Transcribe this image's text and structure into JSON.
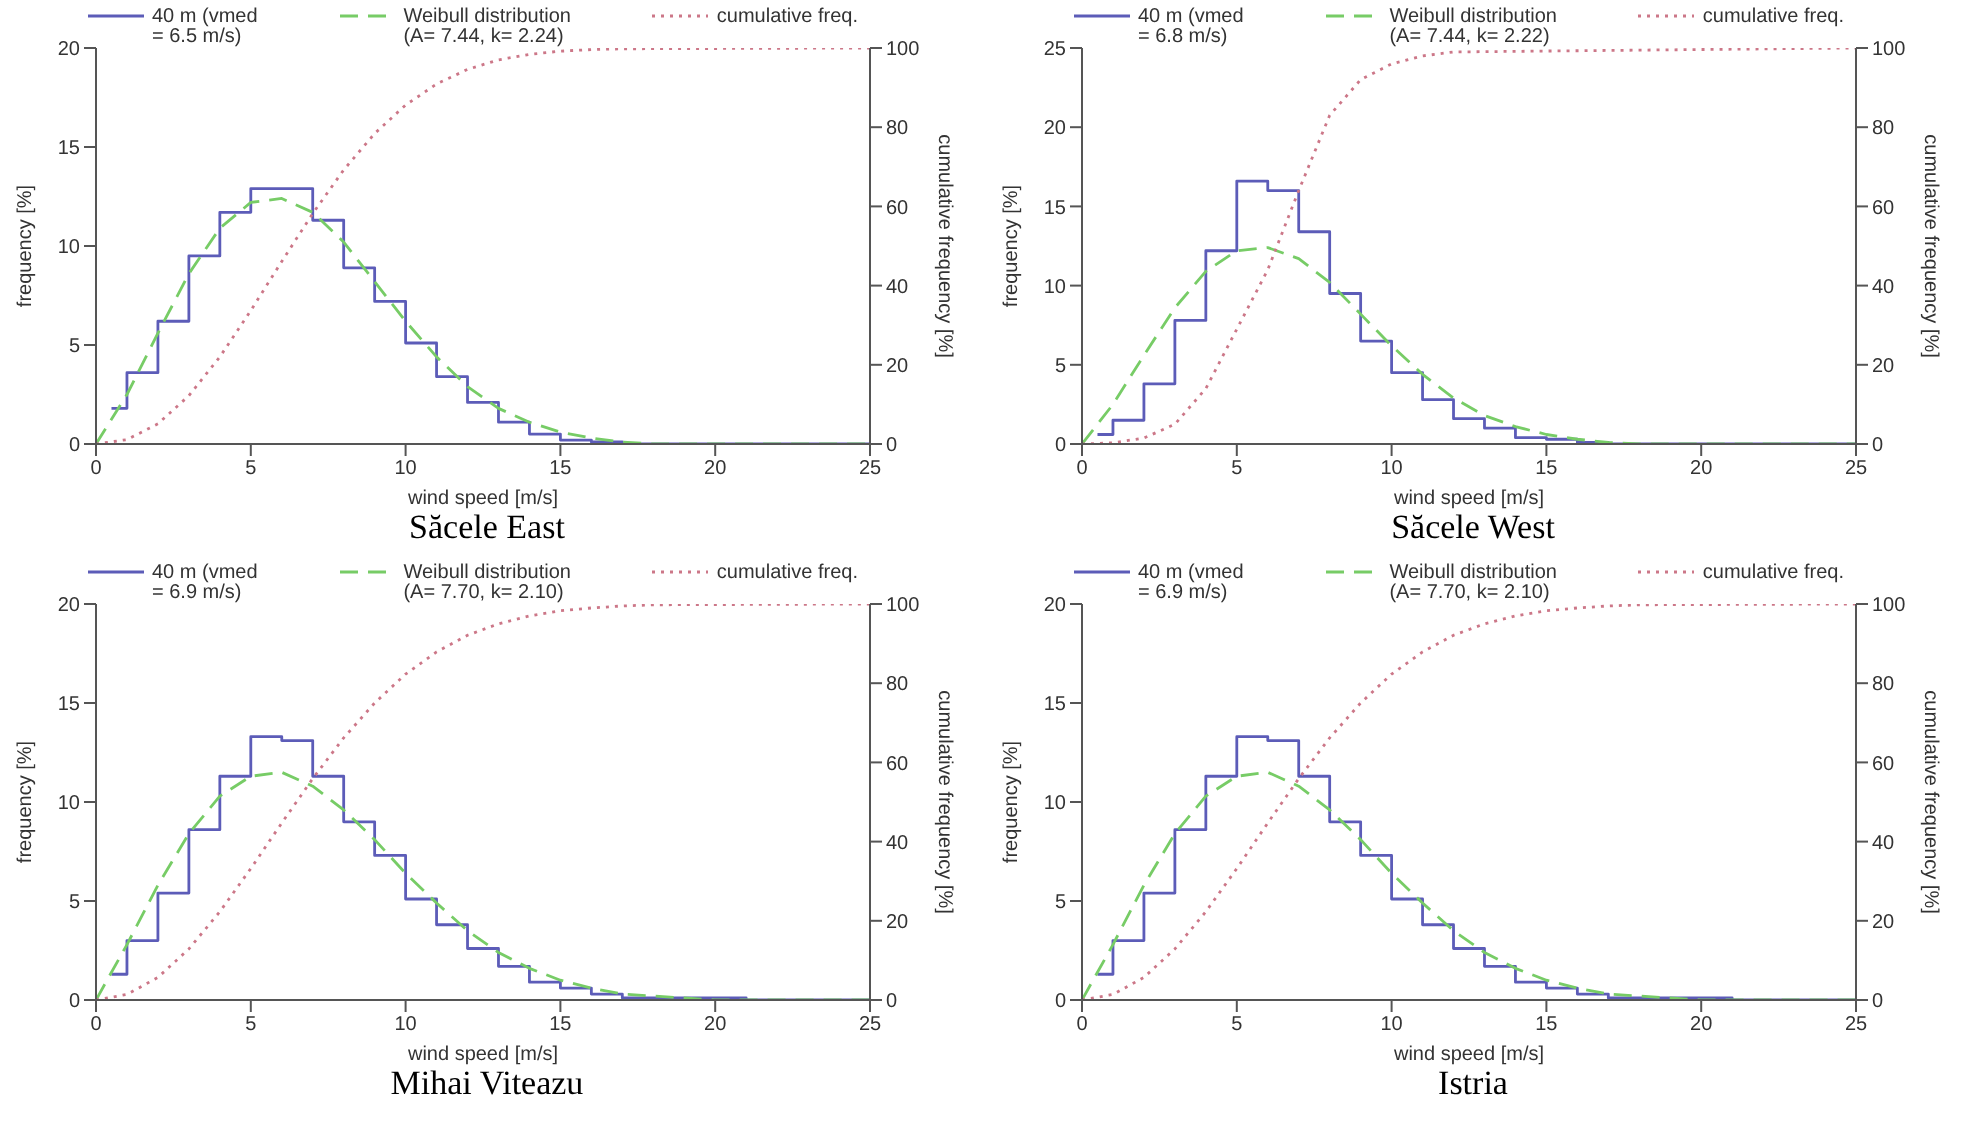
{
  "chart_data": [
    {
      "type": "step",
      "title": "Săcele East",
      "xlabel": "wind speed [m/s]",
      "ylabel": "frequency [%]",
      "y2label": "cumulative frequency [%]",
      "xlim": [
        0,
        25
      ],
      "xticks": [
        0,
        5,
        10,
        15,
        20,
        25
      ],
      "ylim": [
        0,
        20
      ],
      "yticks": [
        0,
        5,
        10,
        15,
        20
      ],
      "y2lim": [
        0,
        100
      ],
      "y2ticks": [
        0,
        20,
        40,
        60,
        80,
        100
      ],
      "legend": "top",
      "grid": false,
      "series": [
        {
          "name": "40 m (vmed\n= 6.5 m/s)",
          "color": "#5c5cb8",
          "line_style": "solid",
          "x": [
            0.5,
            1,
            2,
            3,
            4,
            5,
            6,
            7,
            8,
            9,
            10,
            11,
            12,
            13,
            14,
            15,
            16,
            17,
            25
          ],
          "values": [
            1.8,
            3.6,
            6.2,
            9.5,
            11.7,
            12.9,
            12.9,
            11.3,
            8.9,
            7.2,
            5.1,
            3.4,
            2.1,
            1.1,
            0.5,
            0.2,
            0.1,
            0,
            0
          ]
        },
        {
          "type": "line",
          "name": "Weibull distribution\n(A= 7.44, k= 2.24)",
          "color": "#77cc66",
          "line_style": "dashed",
          "x": [
            0,
            1,
            2,
            3,
            4,
            5,
            6,
            7,
            8,
            9,
            10,
            11,
            12,
            13,
            14,
            15,
            16,
            17,
            18,
            25
          ],
          "values": [
            0,
            2.5,
            5.6,
            8.6,
            10.9,
            12.2,
            12.4,
            11.7,
            10.2,
            8.2,
            6.2,
            4.4,
            2.9,
            1.8,
            1.1,
            0.6,
            0.3,
            0.1,
            0,
            0
          ]
        },
        {
          "type": "line",
          "axis": "y2",
          "name": "cumulative freq.",
          "color": "#cc7788",
          "line_style": "dotted",
          "x": [
            0,
            1,
            2,
            3,
            4,
            5,
            6,
            7,
            8,
            9,
            10,
            11,
            12,
            13,
            14,
            15,
            16,
            17,
            25
          ],
          "values": [
            0,
            1.1,
            5.1,
            12.2,
            22.0,
            33.7,
            46.1,
            58.2,
            69.2,
            78.4,
            85.6,
            90.9,
            94.6,
            97.0,
            98.4,
            99.2,
            99.6,
            99.8,
            100
          ]
        }
      ]
    },
    {
      "type": "step",
      "title": "Săcele West",
      "xlabel": "wind speed [m/s]",
      "ylabel": "frequency [%]",
      "y2label": "cumulative frequency [%]",
      "xlim": [
        0,
        25
      ],
      "xticks": [
        0,
        5,
        10,
        15,
        20,
        25
      ],
      "ylim": [
        0,
        25
      ],
      "yticks": [
        0,
        5,
        10,
        15,
        20,
        25
      ],
      "y2lim": [
        0,
        100
      ],
      "y2ticks": [
        0,
        20,
        40,
        60,
        80,
        100
      ],
      "legend": "top",
      "grid": false,
      "series": [
        {
          "name": "40 m (vmed\n= 6.8 m/s)",
          "color": "#5c5cb8",
          "line_style": "solid",
          "x": [
            0.5,
            1,
            2,
            3,
            4,
            5,
            6,
            7,
            8,
            9,
            10,
            11,
            12,
            13,
            14,
            15,
            16,
            17,
            25
          ],
          "values": [
            0.6,
            1.5,
            3.8,
            7.8,
            12.2,
            16.6,
            16.0,
            13.4,
            9.5,
            6.5,
            4.5,
            2.8,
            1.6,
            1.0,
            0.4,
            0.3,
            0.1,
            0,
            0
          ]
        },
        {
          "type": "line",
          "name": "Weibull distribution\n(A= 7.44, k= 2.22)",
          "color": "#77cc66",
          "line_style": "dashed",
          "x": [
            0,
            1,
            2,
            3,
            4,
            5,
            6,
            7,
            8,
            9,
            10,
            11,
            12,
            13,
            14,
            15,
            16,
            17,
            18,
            25
          ],
          "values": [
            0,
            2.5,
            5.6,
            8.6,
            10.9,
            12.2,
            12.4,
            11.7,
            10.2,
            8.2,
            6.2,
            4.4,
            2.9,
            1.8,
            1.1,
            0.6,
            0.3,
            0.1,
            0,
            0
          ]
        },
        {
          "type": "line",
          "axis": "y2",
          "name": "cumulative freq.",
          "color": "#cc7788",
          "line_style": "dotted",
          "x": [
            0,
            1,
            2,
            3,
            4,
            5,
            6,
            7,
            8,
            9,
            10,
            11,
            12,
            25
          ],
          "values": [
            0,
            0.3,
            1.5,
            5,
            14,
            29,
            44,
            64,
            83,
            92,
            96,
            98,
            99,
            100
          ]
        }
      ]
    },
    {
      "type": "step",
      "title": "Mihai Viteazu",
      "xlabel": "wind speed [m/s]",
      "ylabel": "frequency [%]",
      "y2label": "cumulative frequency [%]",
      "xlim": [
        0,
        25
      ],
      "xticks": [
        0,
        5,
        10,
        15,
        20,
        25
      ],
      "ylim": [
        0,
        20
      ],
      "yticks": [
        0,
        5,
        10,
        15,
        20
      ],
      "y2lim": [
        0,
        100
      ],
      "y2ticks": [
        0,
        20,
        40,
        60,
        80,
        100
      ],
      "legend": "top",
      "grid": false,
      "series": [
        {
          "name": "40 m (vmed\n= 6.9 m/s)",
          "color": "#5c5cb8",
          "line_style": "solid",
          "x": [
            0.5,
            1,
            2,
            3,
            4,
            5,
            6,
            7,
            8,
            9,
            10,
            11,
            12,
            13,
            14,
            15,
            16,
            17,
            18,
            19,
            20,
            21,
            25
          ],
          "values": [
            1.3,
            3.0,
            5.4,
            8.6,
            11.3,
            13.3,
            13.1,
            11.3,
            9.0,
            7.3,
            5.1,
            3.8,
            2.6,
            1.7,
            0.9,
            0.6,
            0.3,
            0.1,
            0.1,
            0.1,
            0.1,
            0,
            0
          ]
        },
        {
          "type": "line",
          "name": "Weibull distribution\n(A= 7.70, k= 2.10)",
          "color": "#77cc66",
          "line_style": "dashed",
          "x": [
            0,
            1,
            2,
            3,
            4,
            5,
            6,
            7,
            8,
            9,
            10,
            11,
            12,
            13,
            14,
            15,
            16,
            17,
            18,
            19,
            20,
            25
          ],
          "values": [
            0,
            2.8,
            5.8,
            8.4,
            10.3,
            11.3,
            11.5,
            10.8,
            9.6,
            8.1,
            6.4,
            4.9,
            3.5,
            2.4,
            1.6,
            1.0,
            0.6,
            0.3,
            0.2,
            0.1,
            0,
            0
          ]
        },
        {
          "type": "line",
          "axis": "y2",
          "name": "cumulative freq.",
          "color": "#cc7788",
          "line_style": "dotted",
          "x": [
            0,
            1,
            2,
            3,
            4,
            5,
            6,
            7,
            8,
            9,
            10,
            11,
            12,
            13,
            14,
            15,
            16,
            17,
            18,
            25
          ],
          "values": [
            0,
            1.4,
            5.7,
            12.9,
            22.3,
            33.2,
            44.7,
            55.9,
            66.2,
            75.0,
            82.3,
            87.9,
            92.1,
            95.0,
            97.0,
            98.3,
            99.0,
            99.5,
            99.8,
            100
          ]
        }
      ]
    },
    {
      "type": "step",
      "title": "Istria",
      "xlabel": "wind speed [m/s]",
      "ylabel": "frequency [%]",
      "y2label": "cumulative frequency [%]",
      "xlim": [
        0,
        25
      ],
      "xticks": [
        0,
        5,
        10,
        15,
        20,
        25
      ],
      "ylim": [
        0,
        20
      ],
      "yticks": [
        0,
        5,
        10,
        15,
        20
      ],
      "y2lim": [
        0,
        100
      ],
      "y2ticks": [
        0,
        20,
        40,
        60,
        80,
        100
      ],
      "legend": "top",
      "grid": false,
      "series": [
        {
          "name": "40 m (vmed\n= 6.9 m/s)",
          "color": "#5c5cb8",
          "line_style": "solid",
          "x": [
            0.5,
            1,
            2,
            3,
            4,
            5,
            6,
            7,
            8,
            9,
            10,
            11,
            12,
            13,
            14,
            15,
            16,
            17,
            18,
            19,
            20,
            21,
            25
          ],
          "values": [
            1.3,
            3.0,
            5.4,
            8.6,
            11.3,
            13.3,
            13.1,
            11.3,
            9.0,
            7.3,
            5.1,
            3.8,
            2.6,
            1.7,
            0.9,
            0.6,
            0.3,
            0.1,
            0.1,
            0.1,
            0.1,
            0,
            0
          ]
        },
        {
          "type": "line",
          "name": "Weibull distribution\n(A= 7.70, k= 2.10)",
          "color": "#77cc66",
          "line_style": "dashed",
          "x": [
            0,
            1,
            2,
            3,
            4,
            5,
            6,
            7,
            8,
            9,
            10,
            11,
            12,
            13,
            14,
            15,
            16,
            17,
            18,
            19,
            20,
            25
          ],
          "values": [
            0,
            2.8,
            5.8,
            8.4,
            10.3,
            11.3,
            11.5,
            10.8,
            9.6,
            8.1,
            6.4,
            4.9,
            3.5,
            2.4,
            1.6,
            1.0,
            0.6,
            0.3,
            0.2,
            0.1,
            0,
            0
          ]
        },
        {
          "type": "line",
          "axis": "y2",
          "name": "cumulative freq.",
          "color": "#cc7788",
          "line_style": "dotted",
          "x": [
            0,
            1,
            2,
            3,
            4,
            5,
            6,
            7,
            8,
            9,
            10,
            11,
            12,
            13,
            14,
            15,
            16,
            17,
            18,
            25
          ],
          "values": [
            0,
            1.4,
            5.7,
            12.9,
            22.3,
            33.2,
            44.7,
            55.9,
            66.2,
            75.0,
            82.3,
            87.9,
            92.1,
            95.0,
            97.0,
            98.3,
            99.0,
            99.5,
            99.8,
            100
          ]
        }
      ]
    }
  ]
}
